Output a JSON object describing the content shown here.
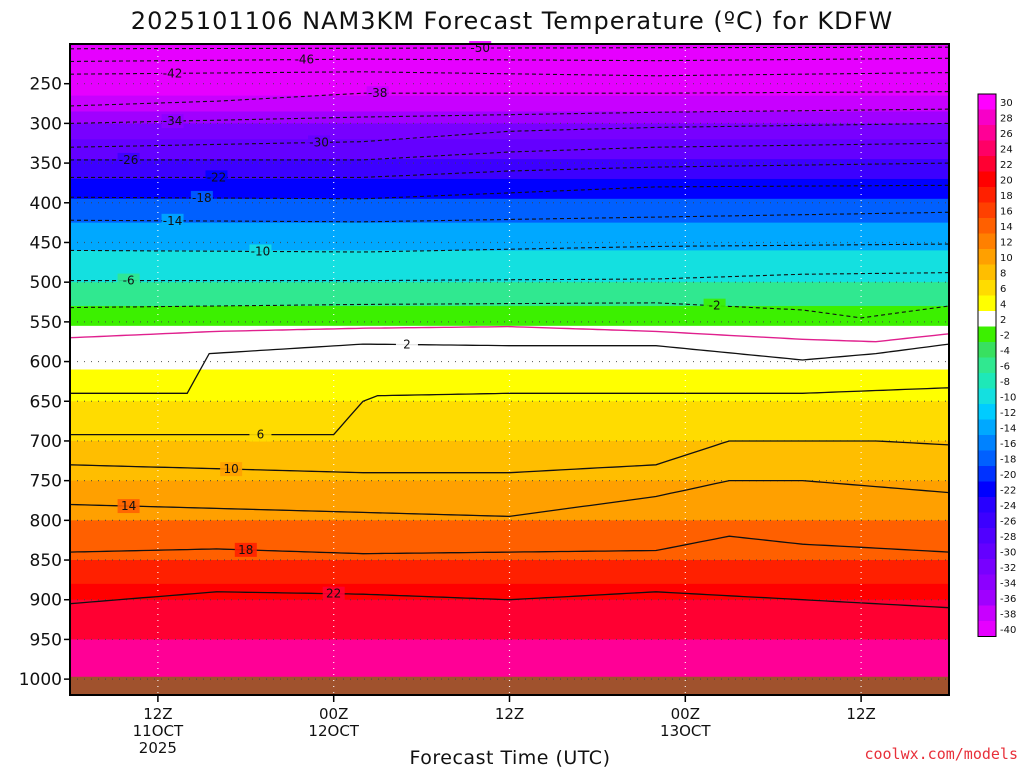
{
  "chart_data": {
    "type": "time-pressure cross section (filled contour)",
    "title": "2025101106 NAM3KM Forecast Temperature (ºC) for KDFW",
    "xlabel": "Forecast Time (UTC)",
    "ylabel": "",
    "credit": "coolwx.com/models",
    "x_ticks": [
      {
        "hour": 6,
        "lines": [
          "12Z",
          "11OCT",
          "2025"
        ]
      },
      {
        "hour": 18,
        "lines": [
          "00Z",
          "12OCT"
        ]
      },
      {
        "hour": 30,
        "lines": [
          "12Z"
        ]
      },
      {
        "hour": 42,
        "lines": [
          "00Z",
          "13OCT"
        ]
      },
      {
        "hour": 54,
        "lines": [
          "12Z"
        ]
      }
    ],
    "x_range_hours": [
      0,
      60
    ],
    "y_ticks": [
      {
        "p": 250,
        "label": "250"
      },
      {
        "p": 300,
        "label": "300"
      },
      {
        "p": 350,
        "label": "350"
      },
      {
        "p": 400,
        "label": "400"
      },
      {
        "p": 450,
        "label": "450"
      },
      {
        "p": 500,
        "label": "500"
      },
      {
        "p": 550,
        "label": "550"
      },
      {
        "p": 600,
        "label": "600"
      },
      {
        "p": 650,
        "label": "650"
      },
      {
        "p": 700,
        "label": "700"
      },
      {
        "p": 750,
        "label": "750"
      },
      {
        "p": 800,
        "label": "800"
      },
      {
        "p": 850,
        "label": "850"
      },
      {
        "p": 900,
        "label": "900"
      },
      {
        "p": 950,
        "label": "950"
      },
      {
        "p": 1000,
        "label": "1000"
      }
    ],
    "y_range_hpa": [
      200,
      1020
    ],
    "surface_hpa": 997,
    "surface_color": "#a0522d",
    "levels": [
      {
        "p": 200,
        "t": -54
      },
      {
        "p": 215,
        "t": -51
      },
      {
        "p": 225,
        "t": -47
      },
      {
        "p": 240,
        "t": -43
      },
      {
        "p": 265,
        "t": -39
      },
      {
        "p": 285,
        "t": -36
      },
      {
        "p": 300,
        "t": -33
      },
      {
        "p": 320,
        "t": -30
      },
      {
        "p": 345,
        "t": -26
      },
      {
        "p": 370,
        "t": -22
      },
      {
        "p": 395,
        "t": -18
      },
      {
        "p": 425,
        "t": -14
      },
      {
        "p": 460,
        "t": -10
      },
      {
        "p": 500,
        "t": -6
      },
      {
        "p": 530,
        "t": -2
      },
      {
        "p": 555,
        "t": 2
      },
      {
        "p": 610,
        "t": 3
      },
      {
        "p": 650,
        "t": 5
      },
      {
        "p": 700,
        "t": 7
      },
      {
        "p": 750,
        "t": 10
      },
      {
        "p": 800,
        "t": 14
      },
      {
        "p": 850,
        "t": 18
      },
      {
        "p": 880,
        "t": 20
      },
      {
        "p": 900,
        "t": 22
      },
      {
        "p": 950,
        "t": 26
      },
      {
        "p": 1000,
        "t": 30
      }
    ],
    "dashed_contours": [
      {
        "value": -50,
        "label": "-50",
        "x": [
          0,
          60
        ],
        "p": [
          206,
          204
        ],
        "label_hour": 28
      },
      {
        "value": -46,
        "label": "-46",
        "x": [
          0,
          20,
          40,
          60
        ],
        "p": [
          222,
          219,
          221,
          218
        ],
        "label_hour": 16
      },
      {
        "value": -42,
        "label": "-42",
        "x": [
          0,
          20,
          40,
          60
        ],
        "p": [
          238,
          235,
          240,
          236
        ],
        "label_hour": 7
      },
      {
        "value": -38,
        "label": "-38",
        "x": [
          0,
          10,
          20,
          40,
          60
        ],
        "p": [
          278,
          272,
          262,
          262,
          260
        ],
        "label_hour": 21
      },
      {
        "value": -34,
        "label": "-34",
        "x": [
          0,
          20,
          40,
          60
        ],
        "p": [
          300,
          292,
          286,
          282
        ],
        "label_hour": 7
      },
      {
        "value": -30,
        "label": "-30",
        "x": [
          0,
          20,
          30,
          40,
          60
        ],
        "p": [
          330,
          323,
          310,
          305,
          300
        ],
        "label_hour": 17
      },
      {
        "value": -26,
        "label": "-26",
        "x": [
          0,
          20,
          30,
          40,
          60
        ],
        "p": [
          346,
          346,
          336,
          330,
          325
        ],
        "label_hour": 4
      },
      {
        "value": -22,
        "label": "-22",
        "x": [
          0,
          20,
          30,
          40,
          60
        ],
        "p": [
          368,
          368,
          360,
          355,
          350
        ],
        "label_hour": 10
      },
      {
        "value": -18,
        "label": "-18",
        "x": [
          0,
          20,
          40,
          60
        ],
        "p": [
          393,
          395,
          380,
          378
        ],
        "label_hour": 9
      },
      {
        "value": -14,
        "label": "-14",
        "x": [
          0,
          20,
          40,
          60
        ],
        "p": [
          422,
          424,
          418,
          412
        ],
        "label_hour": 7
      },
      {
        "value": -10,
        "label": "-10",
        "x": [
          0,
          20,
          40,
          60
        ],
        "p": [
          460,
          462,
          455,
          452
        ],
        "label_hour": 13
      },
      {
        "value": -6,
        "label": "-6",
        "x": [
          0,
          20,
          40,
          50,
          60
        ],
        "p": [
          498,
          498,
          496,
          490,
          488
        ],
        "label_hour": 4
      },
      {
        "value": -2,
        "label": "-2",
        "x": [
          0,
          20,
          40,
          50,
          54,
          60
        ],
        "p": [
          532,
          528,
          526,
          535,
          545,
          530
        ],
        "label_hour": 44
      }
    ],
    "solid_contours": [
      {
        "value": 2,
        "label": "2",
        "x": [
          0,
          8,
          9.5,
          20,
          30,
          40,
          50,
          55,
          60
        ],
        "p": [
          640,
          640,
          590,
          578,
          580,
          580,
          598,
          590,
          578
        ],
        "label_hour": 23
      },
      {
        "value": 6,
        "label": "6",
        "x": [
          0,
          18,
          20,
          21,
          30,
          40,
          50,
          60
        ],
        "p": [
          692,
          692,
          650,
          643,
          640,
          640,
          640,
          633
        ],
        "label_hour": 13
      },
      {
        "value": 10,
        "label": "10",
        "x": [
          0,
          20,
          30,
          40,
          45,
          55,
          60
        ],
        "p": [
          730,
          740,
          740,
          730,
          700,
          700,
          705
        ],
        "label_hour": 11
      },
      {
        "value": 14,
        "label": "14",
        "x": [
          0,
          20,
          30,
          40,
          45,
          50,
          60
        ],
        "p": [
          780,
          790,
          795,
          770,
          750,
          750,
          765
        ],
        "label_hour": 4
      },
      {
        "value": 18,
        "label": "18",
        "x": [
          0,
          10,
          20,
          30,
          40,
          45,
          50,
          60
        ],
        "p": [
          840,
          836,
          842,
          840,
          838,
          820,
          830,
          840
        ],
        "label_hour": 12
      },
      {
        "value": 22,
        "label": "22",
        "x": [
          0,
          10,
          20,
          30,
          40,
          50,
          60
        ],
        "p": [
          905,
          890,
          893,
          900,
          890,
          900,
          910
        ],
        "label_hour": 18
      }
    ],
    "zero_contour": {
      "value": 0,
      "color": "#e0208e",
      "x": [
        0,
        10,
        20,
        30,
        40,
        50,
        55,
        60
      ],
      "p": [
        570,
        562,
        558,
        556,
        562,
        572,
        575,
        565
      ]
    },
    "colorbar": {
      "levels": [
        "30",
        "28",
        "26",
        "24",
        "22",
        "20",
        "18",
        "16",
        "14",
        "12",
        "10",
        "8",
        "6",
        "4",
        "2",
        "-2",
        "-4",
        "-6",
        "-8",
        "-10",
        "-12",
        "-14",
        "-16",
        "-18",
        "-20",
        "-22",
        "-24",
        "-26",
        "-28",
        "-30",
        "-32",
        "-34",
        "-36",
        "-38",
        "-40"
      ],
      "colors": [
        "#ff00ff",
        "#f700c8",
        "#ff0096",
        "#ff0066",
        "#ff0032",
        "#ff0000",
        "#ff2000",
        "#ff4000",
        "#ff6000",
        "#ff8000",
        "#ffa000",
        "#ffbe00",
        "#ffdc00",
        "#ffff00",
        "#ffffff",
        "#3cf000",
        "#38e060",
        "#30e890",
        "#1ee8b8",
        "#14e0e0",
        "#00ccff",
        "#00a8ff",
        "#0082ff",
        "#0060ff",
        "#0032ff",
        "#0000ff",
        "#2800ff",
        "#3c00ff",
        "#5000ff",
        "#6400ff",
        "#7800ff",
        "#8c00ff",
        "#a000ff",
        "#c800ff",
        "#e600ff"
      ]
    }
  }
}
